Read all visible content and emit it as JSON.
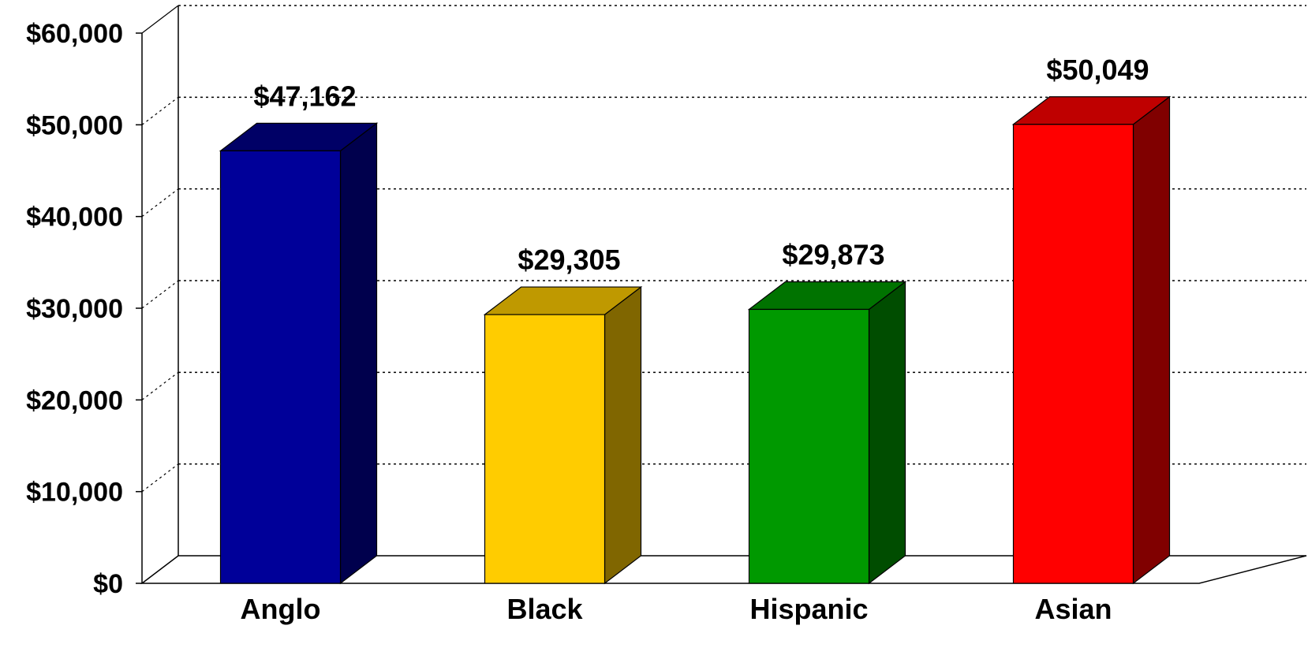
{
  "chart_data": {
    "type": "bar",
    "categories": [
      "Anglo",
      "Black",
      "Hispanic",
      "Asian"
    ],
    "values": [
      47162,
      29305,
      29873,
      50049
    ],
    "value_labels": [
      "$47,162",
      "$29,305",
      "$29,873",
      "$50,049"
    ],
    "y_ticks": [
      {
        "value": 0,
        "label": "$0"
      },
      {
        "value": 10000,
        "label": "$10,000"
      },
      {
        "value": 20000,
        "label": "$20,000"
      },
      {
        "value": 30000,
        "label": "$30,000"
      },
      {
        "value": 40000,
        "label": "$40,000"
      },
      {
        "value": 50000,
        "label": "$50,000"
      },
      {
        "value": 60000,
        "label": "$60,000"
      }
    ],
    "ylim": [
      0,
      60000
    ],
    "grid": true,
    "style": "3d-column",
    "colors": {
      "Anglo": {
        "front": "#000099",
        "top": "#000066",
        "side": "#00004d"
      },
      "Black": {
        "front": "#ffcc00",
        "top": "#bf9900",
        "side": "#806600"
      },
      "Hispanic": {
        "front": "#009900",
        "top": "#007300",
        "side": "#004d00"
      },
      "Asian": {
        "front": "#ff0000",
        "top": "#bf0000",
        "side": "#800000"
      }
    }
  }
}
